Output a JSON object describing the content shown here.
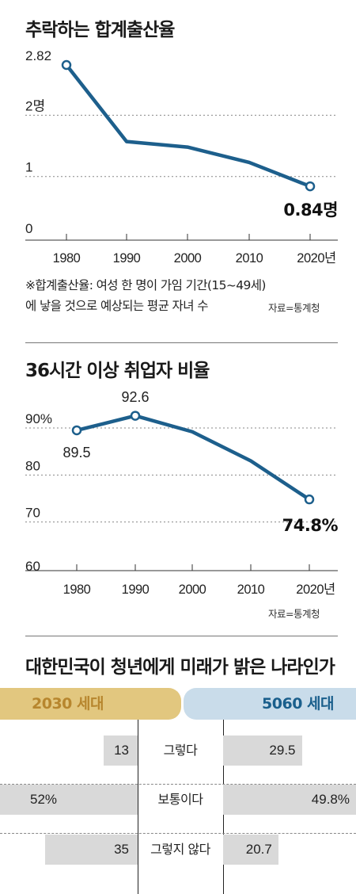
{
  "chart_data": [
    {
      "type": "line",
      "title": "추락하는 합계출산율",
      "x": [
        "1980",
        "1990",
        "2000",
        "2010",
        "2020년"
      ],
      "series": [
        {
          "values": [
            2.82,
            1.57,
            1.48,
            1.23,
            0.84
          ]
        }
      ],
      "ylim": [
        0,
        2.82
      ],
      "y_ticks": [
        "0",
        "1",
        "2명",
        "2.82"
      ],
      "y_tick_values": [
        0,
        1,
        2,
        2.82
      ],
      "end_label": "0.84명",
      "note": "※합계출산율: 여성 한 명이 가임 기간(15~49세) 에 낳을 것으로 예상되는 평균 자녀 수",
      "note_line1": "※합계출산율: 여성 한 명이 가임 기간(15~49세)",
      "note_line2": "에 낳을 것으로 예상되는 평균 자녀 수",
      "source": "자료=통계청",
      "grid": "dotted horizontal"
    },
    {
      "type": "line",
      "title": "36시간 이상 취업자 비율",
      "x": [
        "1980",
        "1990",
        "2000",
        "2010",
        "2020년"
      ],
      "series": [
        {
          "values": [
            89.5,
            92.6,
            89.2,
            83.0,
            74.8
          ]
        }
      ],
      "ylim": [
        60,
        95
      ],
      "y_ticks": [
        "60",
        "70",
        "80",
        "90%"
      ],
      "y_tick_values": [
        60,
        70,
        80,
        90
      ],
      "point_labels": {
        "start": "89.5",
        "peak": "92.6",
        "end": "74.8%"
      },
      "source": "자료=통계청",
      "grid": "dotted horizontal"
    },
    {
      "type": "bar",
      "title": "대한민국이 청년에게 미래가 밝은 나라인가",
      "categories": [
        "그렇다",
        "보통이다",
        "그렇지 않다"
      ],
      "series": [
        {
          "name": "2030 세대",
          "values": [
            13,
            52,
            35
          ],
          "labels": [
            "13",
            "52%",
            "35"
          ]
        },
        {
          "name": "5060 세대",
          "values": [
            29.5,
            49.8,
            20.7
          ],
          "labels": [
            "29.5",
            "49.8%",
            "20.7"
          ]
        }
      ],
      "colors": {
        "left_header": "#e2c77f",
        "left_header_text": "#b7862e",
        "right_header": "#c9dcea",
        "right_header_text": "#1a5f8c",
        "bar": "#d9d9d9"
      }
    }
  ],
  "colors": {
    "line": "#1d5f8c",
    "grid": "#888888"
  }
}
